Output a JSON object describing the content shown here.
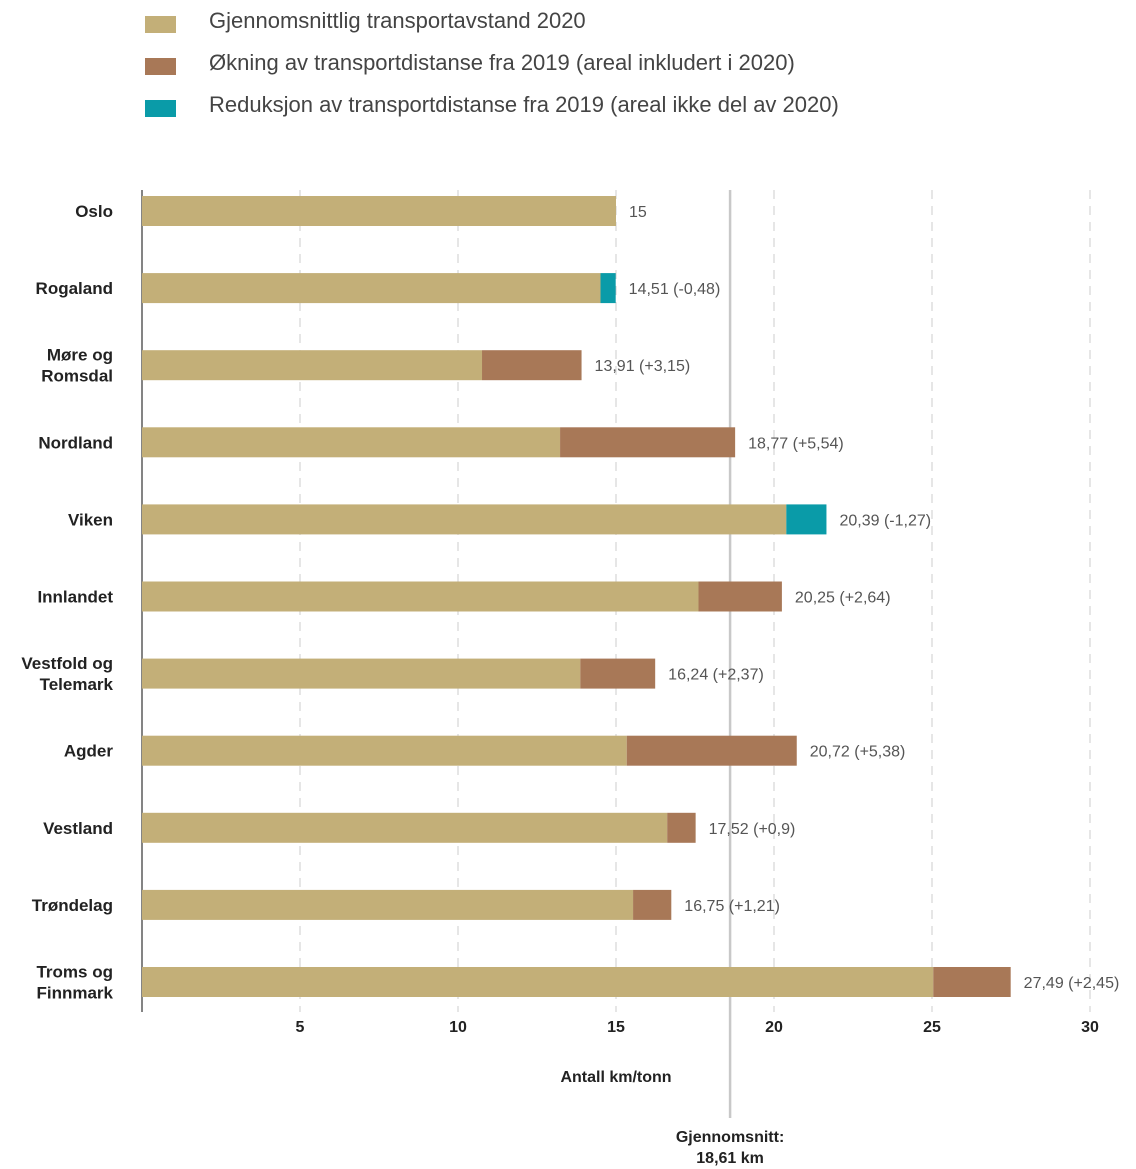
{
  "colors": {
    "base": "#C3AF78",
    "increase": "#A87857",
    "reduction": "#0A9BA8",
    "grid": "#cccccc",
    "avg_line": "#c8c8c8"
  },
  "chart_data": {
    "type": "bar",
    "orientation": "horizontal",
    "stacked": true,
    "legend": [
      {
        "key": "base",
        "label": "Gjennomsnittlig transportavstand 2020"
      },
      {
        "key": "increase",
        "label": "Økning av transportdistanse fra 2019 (areal inkludert i 2020)"
      },
      {
        "key": "reduction",
        "label": "Reduksjon av transportdistanse fra 2019 (areal ikke del av 2020)"
      }
    ],
    "legend_position": "top-left",
    "categories": [
      [
        "Oslo"
      ],
      [
        "Rogaland"
      ],
      [
        "Møre og",
        "Romsdal"
      ],
      [
        "Nordland"
      ],
      [
        "Viken"
      ],
      [
        "Innlandet"
      ],
      [
        "Vestfold og",
        "Telemark"
      ],
      [
        "Agder"
      ],
      [
        "Vestland"
      ],
      [
        "Trøndelag"
      ],
      [
        "Troms og",
        "Finnmark"
      ]
    ],
    "series": [
      {
        "key": "base",
        "name": "Gjennomsnittlig transportavstand 2020",
        "values": [
          15,
          14.51,
          10.76,
          13.23,
          20.39,
          17.61,
          13.87,
          15.34,
          16.62,
          15.54,
          25.04
        ]
      },
      {
        "key": "increase",
        "name": "Økning av transportdistanse fra 2019 (areal inkludert i 2020)",
        "values": [
          0,
          0,
          3.15,
          5.54,
          0,
          2.64,
          2.37,
          5.38,
          0.9,
          1.21,
          2.45
        ]
      },
      {
        "key": "reduction",
        "name": "Reduksjon av transportdistanse fra 2019 (areal ikke del av 2020)",
        "values": [
          0,
          0.48,
          0,
          0,
          1.27,
          0,
          0,
          0,
          0,
          0,
          0
        ]
      }
    ],
    "data_labels": [
      "15",
      "14,51 (-0,48)",
      "13,91 (+3,15)",
      "18,77 (+5,54)",
      "20,39 (-1,27)",
      "20,25 (+2,64)",
      "16,24 (+2,37)",
      "20,72 (+5,38)",
      "17,52 (+0,9)",
      "16,75 (+1,21)",
      "27,49 (+2,45)"
    ],
    "x_ticks": [
      5,
      10,
      15,
      20,
      25,
      30
    ],
    "xlim": [
      0,
      30
    ],
    "xlabel": "Antall km/tonn",
    "grid": "vertical-dashed",
    "reference_line": {
      "value": 18.61,
      "label": [
        "Gjennomsnitt:",
        "18,61 km"
      ]
    }
  }
}
